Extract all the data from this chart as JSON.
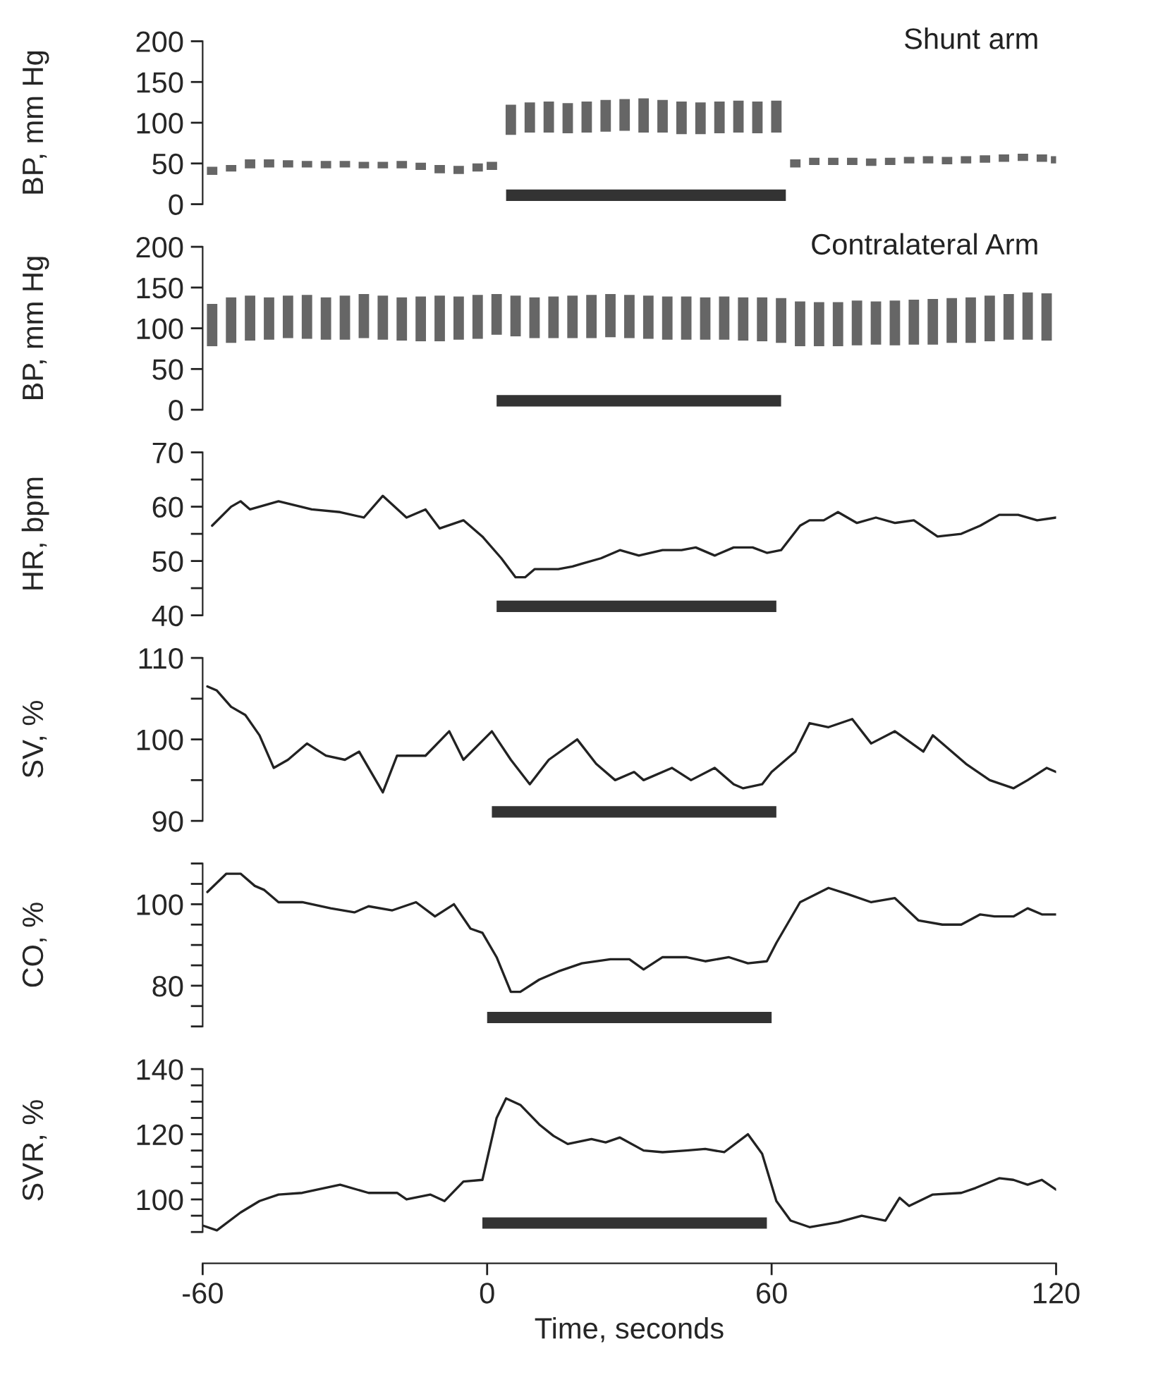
{
  "chart_data": [
    {
      "type": "bar",
      "title": "Shunt arm",
      "ylabel": "BP, mm Hg",
      "color": "#666666",
      "tick_labels": "y",
      "x": [
        -58,
        -54,
        -50,
        -46,
        -42,
        -38,
        -34,
        -30,
        -26,
        -22,
        -18,
        -14,
        -10,
        -6,
        -2,
        1,
        5,
        9,
        13,
        17,
        21,
        25,
        29,
        33,
        37,
        41,
        45,
        49,
        53,
        57,
        61,
        65,
        69,
        73,
        77,
        81,
        85,
        89,
        93,
        97,
        101,
        105,
        109,
        113,
        117,
        120
      ],
      "base": [
        36,
        40,
        44,
        45,
        45,
        45,
        44,
        45,
        44,
        44,
        44,
        42,
        38,
        37,
        40,
        42,
        85,
        88,
        88,
        87,
        88,
        89,
        90,
        88,
        88,
        86,
        86,
        87,
        88,
        87,
        88,
        45,
        48,
        48,
        48,
        47,
        48,
        50,
        50,
        49,
        50,
        51,
        52,
        53,
        52,
        50
      ],
      "values": [
        10,
        8,
        11,
        10,
        9,
        8,
        9,
        8,
        8,
        8,
        9,
        9,
        10,
        10,
        10,
        10,
        37,
        37,
        38,
        37,
        38,
        39,
        39,
        42,
        40,
        40,
        39,
        39,
        39,
        39,
        39,
        10,
        9,
        9,
        9,
        9,
        9,
        8,
        9,
        9,
        9,
        9,
        9,
        9,
        9,
        9
      ],
      "xlim": [
        -60,
        120
      ],
      "ylim": [
        0,
        200
      ],
      "yticks": [
        0,
        50,
        100,
        150,
        200
      ],
      "bands": [
        {
          "axis": "x",
          "from": 4,
          "to": 63,
          "color": "#333333"
        }
      ]
    },
    {
      "type": "bar",
      "title": "Contralateral Arm",
      "ylabel": "BP, mm Hg",
      "color": "#666666",
      "tick_labels": "y",
      "x": [
        -58,
        -54,
        -50,
        -46,
        -42,
        -38,
        -34,
        -30,
        -26,
        -22,
        -18,
        -14,
        -10,
        -6,
        -2,
        2,
        6,
        10,
        14,
        18,
        22,
        26,
        30,
        34,
        38,
        42,
        46,
        50,
        54,
        58,
        62,
        66,
        70,
        74,
        78,
        82,
        86,
        90,
        94,
        98,
        102,
        106,
        110,
        114,
        118
      ],
      "base": [
        78,
        82,
        85,
        86,
        88,
        87,
        86,
        86,
        88,
        86,
        85,
        84,
        84,
        86,
        87,
        92,
        90,
        88,
        88,
        88,
        88,
        89,
        88,
        87,
        86,
        86,
        86,
        86,
        85,
        84,
        82,
        78,
        78,
        78,
        79,
        80,
        79,
        80,
        80,
        82,
        82,
        84,
        86,
        86,
        85
      ],
      "values": [
        52,
        56,
        55,
        52,
        52,
        54,
        52,
        54,
        54,
        54,
        53,
        55,
        56,
        53,
        54,
        50,
        50,
        50,
        51,
        52,
        53,
        53,
        53,
        53,
        53,
        53,
        52,
        53,
        53,
        54,
        55,
        55,
        54,
        54,
        55,
        53,
        55,
        55,
        56,
        55,
        56,
        56,
        56,
        58,
        58
      ],
      "xlim": [
        -60,
        120
      ],
      "ylim": [
        0,
        200
      ],
      "yticks": [
        0,
        50,
        100,
        150,
        200
      ],
      "bands": [
        {
          "axis": "x",
          "from": 2,
          "to": 62,
          "color": "#333333"
        }
      ]
    },
    {
      "type": "line",
      "ylabel": "HR, bpm",
      "color": "#222222",
      "tick_labels": "y",
      "x": [
        -58,
        -54,
        -52,
        -50,
        -44,
        -37,
        -31,
        -26,
        -22,
        -17,
        -13,
        -10,
        -5,
        -1,
        3,
        6,
        8,
        10,
        15,
        18,
        20,
        24,
        28,
        32,
        37,
        41,
        44,
        48,
        52,
        56,
        59,
        62,
        66,
        68,
        71,
        74,
        78,
        82,
        86,
        90,
        95,
        100,
        104,
        108,
        112,
        116,
        120
      ],
      "values": [
        56.5,
        60,
        61,
        59.5,
        61,
        59.5,
        59,
        58,
        62,
        58,
        59.5,
        56,
        57.5,
        54.5,
        50.5,
        47,
        47,
        48.5,
        48.5,
        49,
        49.5,
        50.5,
        52,
        51,
        52,
        52,
        52.5,
        51,
        52.5,
        52.5,
        51.5,
        52,
        56.5,
        57.5,
        57.5,
        59,
        57,
        58,
        57,
        57.5,
        54.5,
        55,
        56.5,
        58.5,
        58.5,
        57.5,
        58
      ],
      "xlim": [
        -60,
        120
      ],
      "ylim": [
        40,
        70
      ],
      "yticks": [
        40,
        {
          "value": 45,
          "label": null
        },
        50,
        {
          "value": 55,
          "label": null
        },
        60,
        {
          "value": 65,
          "label": null
        },
        70
      ],
      "bands": [
        {
          "axis": "x",
          "from": 2,
          "to": 61,
          "color": "#333333"
        }
      ]
    },
    {
      "type": "line",
      "ylabel": "SV, %",
      "color": "#222222",
      "tick_labels": "y",
      "x": [
        -59,
        -57,
        -54,
        -51,
        -48,
        -45,
        -42,
        -38,
        -34,
        -30,
        -27,
        -22,
        -19,
        -13,
        -8,
        -5,
        1,
        5,
        9,
        13,
        19,
        23,
        27,
        31,
        33,
        39,
        43,
        48,
        52,
        54,
        58,
        60,
        65,
        68,
        72,
        77,
        81,
        86,
        92,
        94,
        101,
        106,
        111,
        114,
        118,
        120
      ],
      "values": [
        106.5,
        106,
        104,
        103,
        100.5,
        96.5,
        97.5,
        99.5,
        98,
        97.5,
        98.5,
        93.5,
        98,
        98,
        101,
        97.5,
        101,
        97.5,
        94.5,
        97.5,
        100,
        97,
        95,
        96,
        95,
        96.5,
        95,
        96.5,
        94.5,
        94,
        94.5,
        96,
        98.5,
        102,
        101.5,
        102.5,
        99.5,
        101,
        98.5,
        100.5,
        97,
        95,
        94,
        95,
        96.5,
        96
      ],
      "xlim": [
        -60,
        120
      ],
      "ylim": [
        90,
        110
      ],
      "yticks": [
        90,
        {
          "value": 95,
          "label": null
        },
        100,
        {
          "value": 105,
          "label": null
        },
        110
      ],
      "bands": [
        {
          "axis": "x",
          "from": 1,
          "to": 61,
          "color": "#333333"
        }
      ]
    },
    {
      "type": "line",
      "ylabel": "CO, %",
      "color": "#222222",
      "tick_labels": "y",
      "x": [
        -59,
        -55,
        -52,
        -49,
        -47,
        -44,
        -39,
        -33,
        -28,
        -25,
        -20,
        -15,
        -11,
        -7,
        -3.5,
        -1,
        2,
        5,
        7,
        11,
        15,
        20,
        26,
        30,
        33,
        37,
        42,
        46,
        51,
        55,
        59,
        61,
        66,
        72,
        76,
        81,
        86,
        91,
        96,
        100,
        104,
        107,
        111,
        114,
        117,
        120
      ],
      "values": [
        103,
        107.5,
        107.5,
        104.5,
        103.5,
        100.5,
        100.5,
        99,
        98,
        99.5,
        98.5,
        100.5,
        97,
        100,
        94,
        93,
        87,
        78.5,
        78.5,
        81.5,
        83.5,
        85.5,
        86.5,
        86.5,
        84,
        87,
        87,
        86,
        87,
        85.5,
        86,
        90.5,
        100.5,
        104,
        102.5,
        100.5,
        101.5,
        96,
        95,
        95,
        97.5,
        97,
        97,
        99,
        97.5,
        97.5
      ],
      "xlim": [
        -60,
        120
      ],
      "ylim": [
        70,
        110
      ],
      "yticks": [
        {
          "value": 70,
          "label": null
        },
        {
          "value": 75,
          "label": null
        },
        80,
        {
          "value": 85,
          "label": null
        },
        {
          "value": 90,
          "label": null
        },
        {
          "value": 95,
          "label": null
        },
        100,
        {
          "value": 105,
          "label": null
        },
        {
          "value": 110,
          "label": null
        }
      ],
      "bands": [
        {
          "axis": "x",
          "from": 0,
          "to": 60,
          "color": "#333333"
        }
      ]
    },
    {
      "type": "line",
      "ylabel": "SVR, %",
      "xlabel": "Time, seconds",
      "color": "#222222",
      "x": [
        -60,
        -57,
        -52,
        -48,
        -44,
        -39,
        -31,
        -25,
        -19,
        -17,
        -12,
        -9,
        -5,
        -1,
        2,
        4,
        7,
        11,
        14,
        17,
        22,
        25,
        28,
        33,
        37,
        42,
        46,
        50,
        55,
        58,
        61,
        64,
        68,
        74,
        79,
        84,
        87,
        89,
        94,
        100,
        103,
        108,
        111,
        114,
        117,
        120
      ],
      "values": [
        92,
        90.5,
        96,
        99.5,
        101.5,
        102,
        104.5,
        102,
        102,
        100,
        101.5,
        99.5,
        105.5,
        106,
        125,
        131,
        129,
        123,
        119.5,
        117,
        118.5,
        117.5,
        119,
        115,
        114.5,
        115,
        115.5,
        114.5,
        120,
        114,
        99.5,
        93.5,
        91.5,
        93,
        95,
        93.5,
        100.5,
        98,
        101.5,
        102,
        103.5,
        106.5,
        106,
        104.5,
        106,
        103
      ],
      "xlim": [
        -60,
        120
      ],
      "xticks": [
        -60,
        0,
        60,
        120
      ],
      "ylim": [
        90,
        140
      ],
      "yticks": [
        {
          "value": 90,
          "label": null
        },
        {
          "value": 95,
          "label": null
        },
        100,
        {
          "value": 105,
          "label": null
        },
        {
          "value": 110,
          "label": null
        },
        {
          "value": 115,
          "label": null
        },
        120,
        {
          "value": 125,
          "label": null
        },
        {
          "value": 130,
          "label": null
        },
        {
          "value": 135,
          "label": null
        },
        140
      ],
      "bands": [
        {
          "axis": "x",
          "from": -1,
          "to": 59,
          "color": "#333333"
        }
      ]
    }
  ]
}
